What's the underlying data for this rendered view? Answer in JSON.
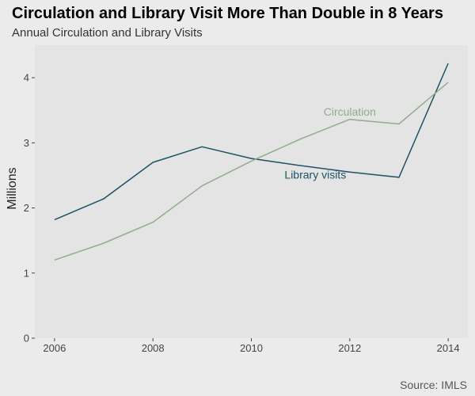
{
  "chart_data": {
    "type": "line",
    "title": "Circulation and Library Visit More Than Double in 8 Years",
    "subtitle": "Annual Circulation and Library Visits",
    "caption": "Source: IMLS",
    "xlabel": "",
    "ylabel": "Millions",
    "x": [
      2006,
      2007,
      2008,
      2009,
      2010,
      2011,
      2012,
      2013,
      2014
    ],
    "xticks": [
      2006,
      2008,
      2010,
      2012,
      2014
    ],
    "yticks": [
      0,
      1,
      2,
      3,
      4
    ],
    "xlim": [
      2005.6,
      2014.4
    ],
    "ylim": [
      0,
      4.5
    ],
    "grid": false,
    "colors": {
      "background": "#ebebeb",
      "panel": "#e4e4e4"
    },
    "series": [
      {
        "name": "Library visits",
        "color": "#1e5266",
        "values": [
          1.82,
          2.14,
          2.7,
          2.94,
          2.76,
          2.65,
          2.55,
          2.47,
          4.22
        ],
        "label_x": 2011.3,
        "label_y": 2.45
      },
      {
        "name": "Circulation",
        "color": "#8fae8a",
        "values": [
          1.2,
          1.46,
          1.78,
          2.34,
          2.72,
          3.06,
          3.36,
          3.29,
          3.93
        ],
        "label_x": 2012.0,
        "label_y": 3.42
      }
    ]
  }
}
